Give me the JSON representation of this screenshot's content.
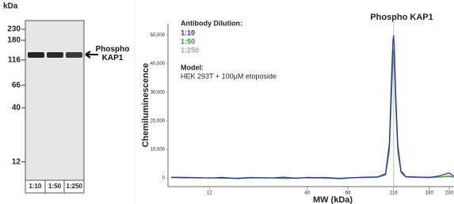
{
  "chart_data": [
    {
      "type": "blot",
      "ylabel": "kDa",
      "yticks": [
        230,
        180,
        116,
        66,
        40,
        12
      ],
      "ylim": [
        10,
        260
      ],
      "log_y": true,
      "categories": [
        "1:10",
        "1:50",
        "1:250"
      ],
      "band_label": "Phospho KAP1"
    },
    {
      "type": "line",
      "title": "Phospho KAP1",
      "xlabel": "MW (kDa)",
      "ylabel": "Chemiluminescence",
      "log_x": true,
      "xlim": [
        7.2,
        244
      ],
      "xticks": [
        12,
        40,
        66,
        116,
        180,
        230
      ],
      "ylim": [
        -3000,
        54000
      ],
      "yticks": [
        0,
        {
          "value": 10000,
          "label": "10,000"
        },
        {
          "value": 20000,
          "label": "20,000"
        },
        {
          "value": 30000,
          "label": "30,000"
        },
        {
          "value": 40000,
          "label": "40,000"
        },
        {
          "value": 50000,
          "label": "50,000"
        }
      ],
      "grid": false,
      "vline": 116,
      "legend_title": "Antibody Dilution:",
      "model_title": "Model:",
      "model_text": "HEK 293T + 100µM etoposide",
      "x": [
        7.5,
        9,
        11,
        12,
        14,
        17,
        20,
        25,
        30,
        35,
        40,
        50,
        60,
        66,
        80,
        95,
        105,
        110,
        113,
        115,
        116,
        117,
        119,
        122,
        127,
        135,
        150,
        180,
        205,
        230,
        243
      ],
      "series": [
        {
          "name": "1:10",
          "color": "#2b2bb5",
          "values": [
            300,
            200,
            100,
            0,
            200,
            -200,
            100,
            0,
            300,
            -100,
            200,
            100,
            -300,
            0,
            300,
            400,
            1500,
            12000,
            35000,
            48000,
            50000,
            46000,
            30000,
            12000,
            2500,
            500,
            400,
            200,
            800,
            1800,
            600
          ]
        },
        {
          "name": "1:50",
          "color": "#3a9a3a",
          "values": [
            200,
            100,
            0,
            100,
            -100,
            0,
            200,
            100,
            -200,
            0,
            100,
            200,
            -100,
            100,
            200,
            300,
            1200,
            10000,
            30000,
            43000,
            45000,
            42000,
            27000,
            10000,
            2000,
            400,
            300,
            300,
            400,
            700,
            300
          ]
        },
        {
          "name": "1:250",
          "color": "#a0a0a0",
          "values": [
            100,
            0,
            100,
            0,
            100,
            -100,
            0,
            100,
            0,
            100,
            0,
            -100,
            0,
            100,
            100,
            200,
            1000,
            9000,
            28000,
            40000,
            42000,
            39000,
            25000,
            9000,
            1800,
            300,
            200,
            100,
            300,
            500,
            200
          ]
        }
      ]
    }
  ]
}
